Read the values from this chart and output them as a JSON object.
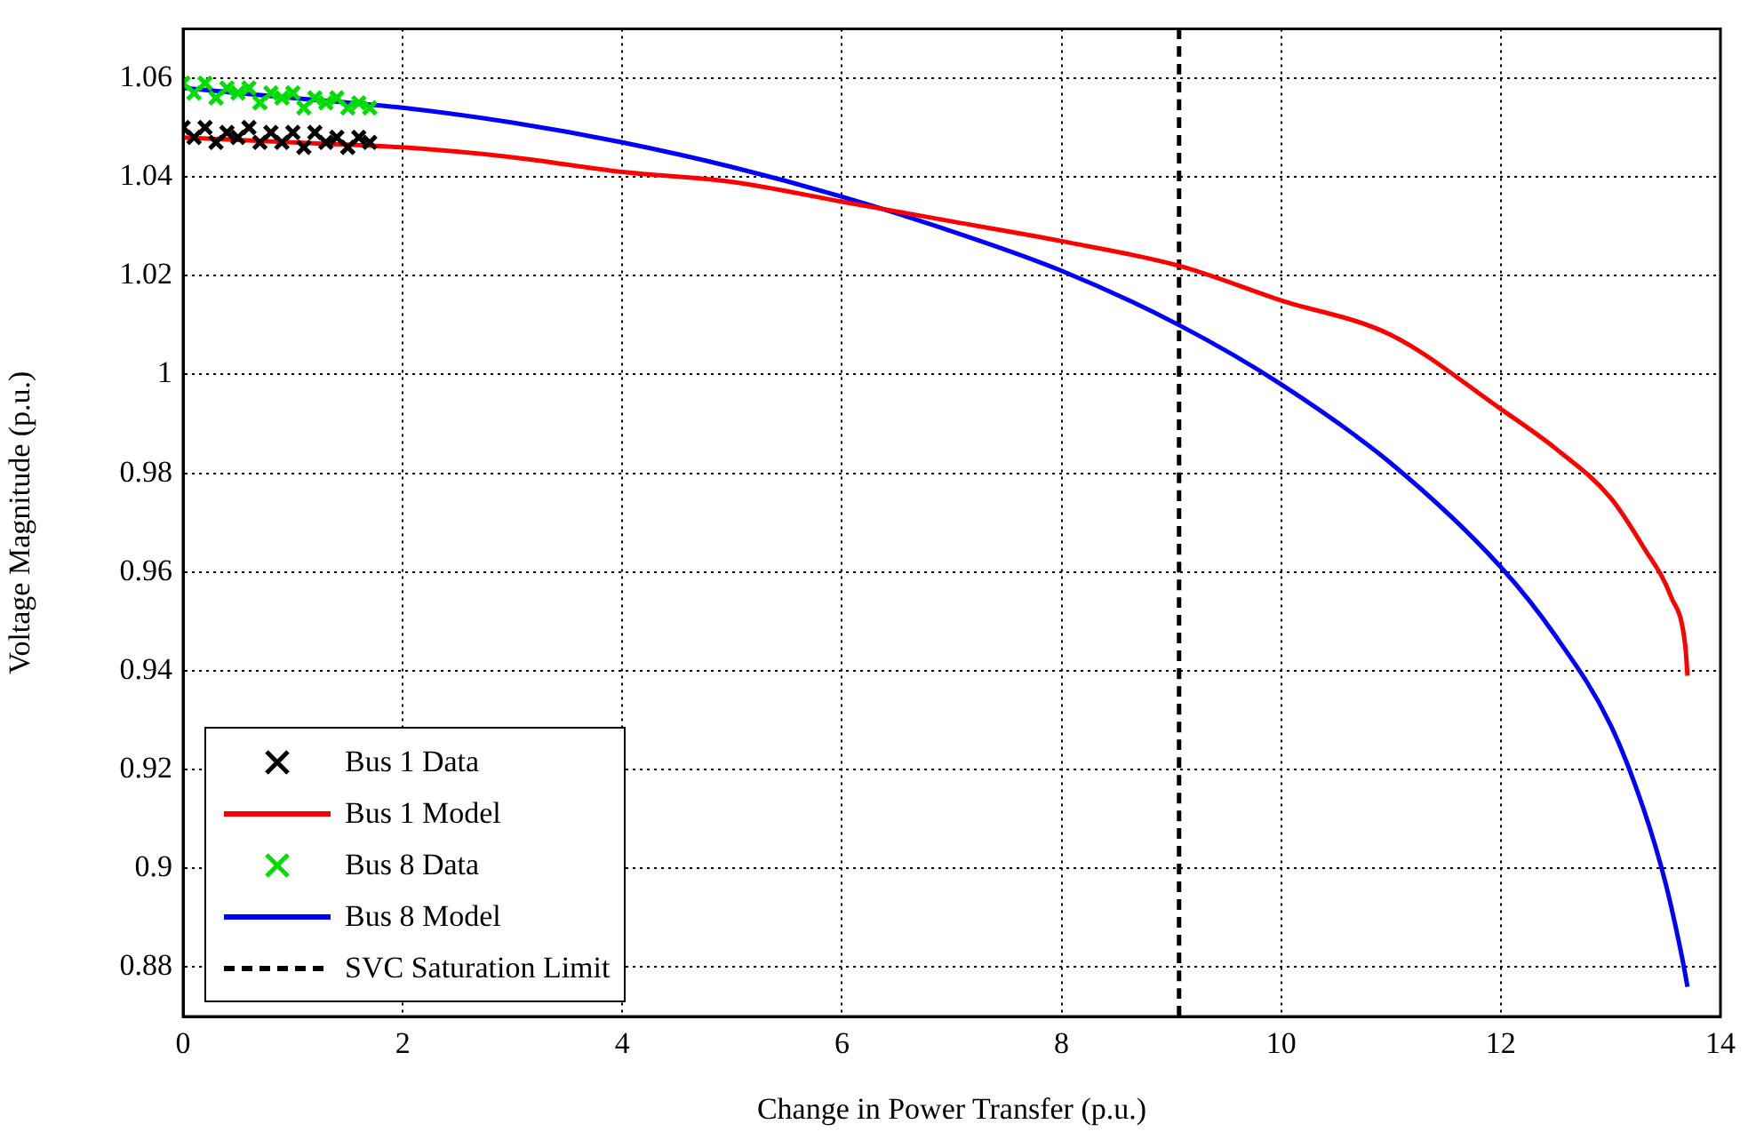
{
  "chart_data": {
    "type": "line",
    "xlabel": "Change in Power Transfer (p.u.)",
    "ylabel": "Voltage Magnitude (p.u.)",
    "xlim": [
      0,
      14
    ],
    "xticks": [
      0,
      2,
      4,
      6,
      8,
      10,
      12,
      14
    ],
    "ylim": [
      0.87,
      1.07
    ],
    "yticks": [
      0.88,
      0.9,
      0.92,
      0.94,
      0.96,
      0.98,
      1,
      1.02,
      1.04,
      1.06
    ],
    "grid": true,
    "legend": "bottom left",
    "line_style": "solid",
    "series": [
      {
        "name": "Bus 1 Data",
        "type": "scatter",
        "marker": "cross",
        "color": "#000000",
        "x": [
          0,
          0.1,
          0.2,
          0.3,
          0.4,
          0.5,
          0.6,
          0.7,
          0.8,
          0.9,
          1.0,
          1.1,
          1.2,
          1.3,
          1.4,
          1.5,
          1.6,
          1.7
        ],
        "values": [
          1.05,
          1.048,
          1.05,
          1.047,
          1.049,
          1.048,
          1.05,
          1.047,
          1.049,
          1.047,
          1.049,
          1.046,
          1.049,
          1.047,
          1.048,
          1.046,
          1.048,
          1.047
        ]
      },
      {
        "name": "Bus 1 Model",
        "color": "#ff0000",
        "x": [
          0,
          1,
          2,
          3,
          4,
          5,
          6,
          7,
          8,
          9.07,
          10,
          11,
          12,
          12.5,
          13,
          13.3,
          13.55,
          13.68,
          13.7
        ],
        "values": [
          1.048,
          1.047,
          1.046,
          1.044,
          1.041,
          1.039,
          1.035,
          1.031,
          1.027,
          1.022,
          1.015,
          1.008,
          0.993,
          0.985,
          0.975,
          0.965,
          0.955,
          0.945,
          0.939
        ]
      },
      {
        "name": "Bus 8 Data",
        "type": "scatter",
        "marker": "cross",
        "color": "#00dd00",
        "x": [
          0,
          0.1,
          0.2,
          0.3,
          0.4,
          0.5,
          0.6,
          0.7,
          0.8,
          0.9,
          1.0,
          1.1,
          1.2,
          1.3,
          1.4,
          1.5,
          1.6,
          1.7
        ],
        "values": [
          1.059,
          1.057,
          1.059,
          1.056,
          1.058,
          1.057,
          1.058,
          1.055,
          1.057,
          1.056,
          1.057,
          1.054,
          1.056,
          1.055,
          1.056,
          1.054,
          1.055,
          1.054
        ]
      },
      {
        "name": "Bus 8 Model",
        "color": "#0000ff",
        "x": [
          0,
          1,
          2,
          3,
          4,
          5,
          6,
          7,
          8,
          9.07,
          10,
          11,
          12,
          12.5,
          13,
          13.3,
          13.5,
          13.65,
          13.7
        ],
        "values": [
          1.058,
          1.056,
          1.054,
          1.051,
          1.047,
          1.042,
          1.036,
          1.029,
          1.021,
          1.01,
          0.998,
          0.982,
          0.961,
          0.947,
          0.929,
          0.912,
          0.897,
          0.882,
          0.876
        ]
      },
      {
        "name": "SVC Saturation Limit",
        "line_style": "dashed",
        "color": "#000000",
        "x": [
          9.07,
          9.07
        ],
        "values": [
          0.87,
          1.07
        ]
      }
    ]
  }
}
